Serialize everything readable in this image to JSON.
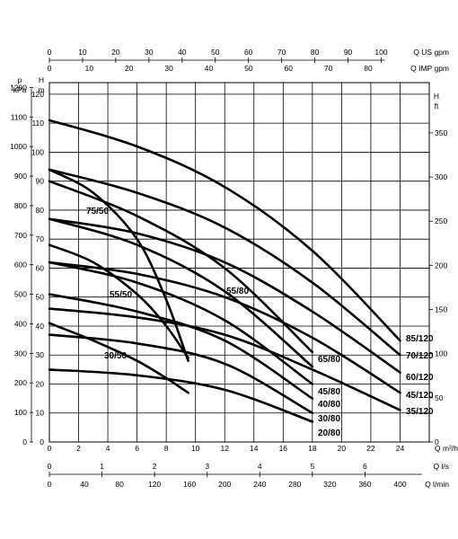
{
  "chart_data": {
    "type": "line",
    "axes": {
      "x_main": {
        "label": "Q m³/h",
        "ticks": [
          0,
          2,
          4,
          6,
          8,
          10,
          12,
          14,
          16,
          18,
          20,
          22,
          24
        ],
        "range": [
          0,
          26
        ]
      },
      "x_us_gpm": {
        "label": "Q US gpm",
        "ticks": [
          0,
          10,
          20,
          30,
          40,
          50,
          60,
          70,
          80,
          90,
          100
        ]
      },
      "x_imp_gpm": {
        "label": "Q IMP gpm",
        "ticks": [
          0,
          10,
          20,
          30,
          40,
          50,
          60,
          70,
          80
        ]
      },
      "x_ls": {
        "label": "Q l/s",
        "ticks": [
          0,
          1,
          2,
          3,
          4,
          5,
          6
        ]
      },
      "x_lmin": {
        "label": "Q l/min",
        "ticks": [
          0,
          40,
          80,
          120,
          160,
          200,
          240,
          280,
          320,
          360,
          400
        ]
      },
      "y_kpa": {
        "label_p": "p",
        "label_unit": "kPa",
        "ticks": [
          0,
          100,
          200,
          300,
          400,
          500,
          600,
          700,
          800,
          900,
          1000,
          1100,
          1200
        ]
      },
      "y_m": {
        "label_h": "H",
        "label_unit": "m",
        "ticks": [
          0,
          10,
          20,
          30,
          40,
          50,
          60,
          70,
          80,
          90,
          100,
          110,
          120
        ],
        "range": [
          0,
          124
        ]
      },
      "y_ft": {
        "label_h": "H",
        "label_unit": "ft",
        "ticks": [
          0,
          50,
          100,
          150,
          200,
          250,
          300,
          350
        ]
      }
    },
    "series": [
      {
        "name": "85/120",
        "x": [
          0,
          6,
          12,
          18,
          24
        ],
        "y": [
          111,
          102,
          88,
          66,
          35
        ]
      },
      {
        "name": "70/120",
        "x": [
          0,
          6,
          12,
          18,
          24
        ],
        "y": [
          94,
          86,
          74,
          55,
          30
        ]
      },
      {
        "name": "60/120",
        "x": [
          0,
          6,
          12,
          18,
          24
        ],
        "y": [
          77,
          72,
          62,
          45,
          24
        ]
      },
      {
        "name": "45/120",
        "x": [
          0,
          6,
          12,
          18,
          24
        ],
        "y": [
          62,
          58,
          50,
          36,
          17
        ]
      },
      {
        "name": "35/120",
        "x": [
          0,
          6,
          12,
          18,
          24
        ],
        "y": [
          46,
          43,
          37,
          25,
          11
        ]
      },
      {
        "name": "75/50",
        "x": [
          0,
          3,
          6,
          8,
          9.5
        ],
        "y": [
          94,
          86,
          70,
          49,
          28
        ]
      },
      {
        "name": "55/50",
        "x": [
          0,
          3,
          6,
          8,
          9.5
        ],
        "y": [
          68,
          62,
          51,
          40,
          29
        ]
      },
      {
        "name": "30/50",
        "x": [
          0,
          3,
          6,
          8,
          9.5
        ],
        "y": [
          41,
          35,
          28,
          22,
          17
        ]
      },
      {
        "name": "65/80",
        "x": [
          0,
          6,
          12,
          18
        ],
        "y": [
          90,
          78,
          60,
          31
        ]
      },
      {
        "name": "55/80",
        "x": [
          0,
          6,
          12,
          18
        ],
        "y": [
          77,
          68,
          52,
          26
        ]
      },
      {
        "name": "45/80",
        "x": [
          0,
          6,
          12,
          18
        ],
        "y": [
          62,
          55,
          42,
          20
        ]
      },
      {
        "name": "40/80",
        "x": [
          0,
          6,
          12,
          18
        ],
        "y": [
          51,
          45,
          35,
          15
        ]
      },
      {
        "name": "30/80",
        "x": [
          0,
          6,
          12,
          18
        ],
        "y": [
          37,
          34,
          27,
          10
        ]
      },
      {
        "name": "20/80",
        "x": [
          0,
          6,
          12,
          18
        ],
        "y": [
          25,
          23,
          18,
          7
        ]
      }
    ]
  }
}
